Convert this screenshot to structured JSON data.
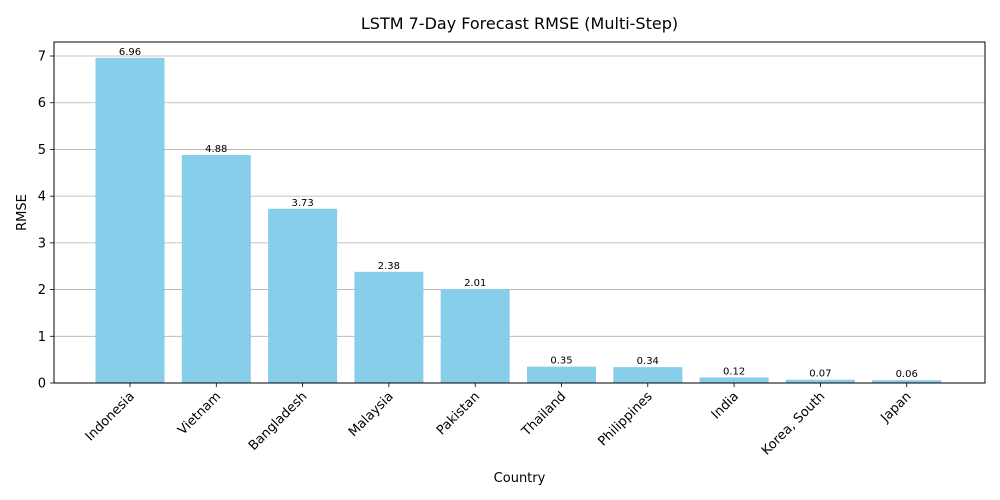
{
  "chart_data": {
    "type": "bar",
    "title": "LSTM 7-Day Forecast RMSE (Multi-Step)",
    "xlabel": "Country",
    "ylabel": "RMSE",
    "categories": [
      "Indonesia",
      "Vietnam",
      "Bangladesh",
      "Malaysia",
      "Pakistan",
      "Thailand",
      "Philippines",
      "India",
      "Korea, South",
      "Japan"
    ],
    "values": [
      6.96,
      4.88,
      3.73,
      2.38,
      2.01,
      0.35,
      0.34,
      0.12,
      0.07,
      0.06
    ],
    "data_labels": [
      "6.96",
      "4.88",
      "3.73",
      "2.38",
      "2.01",
      "0.35",
      "0.34",
      "0.12",
      "0.07",
      "0.06"
    ],
    "ylim": [
      0,
      7.3
    ],
    "yticks": [
      0,
      1,
      2,
      3,
      4,
      5,
      6,
      7
    ],
    "grid": "y-major",
    "bar_color": "#87ceeb",
    "tick_label_rotation": 45
  }
}
